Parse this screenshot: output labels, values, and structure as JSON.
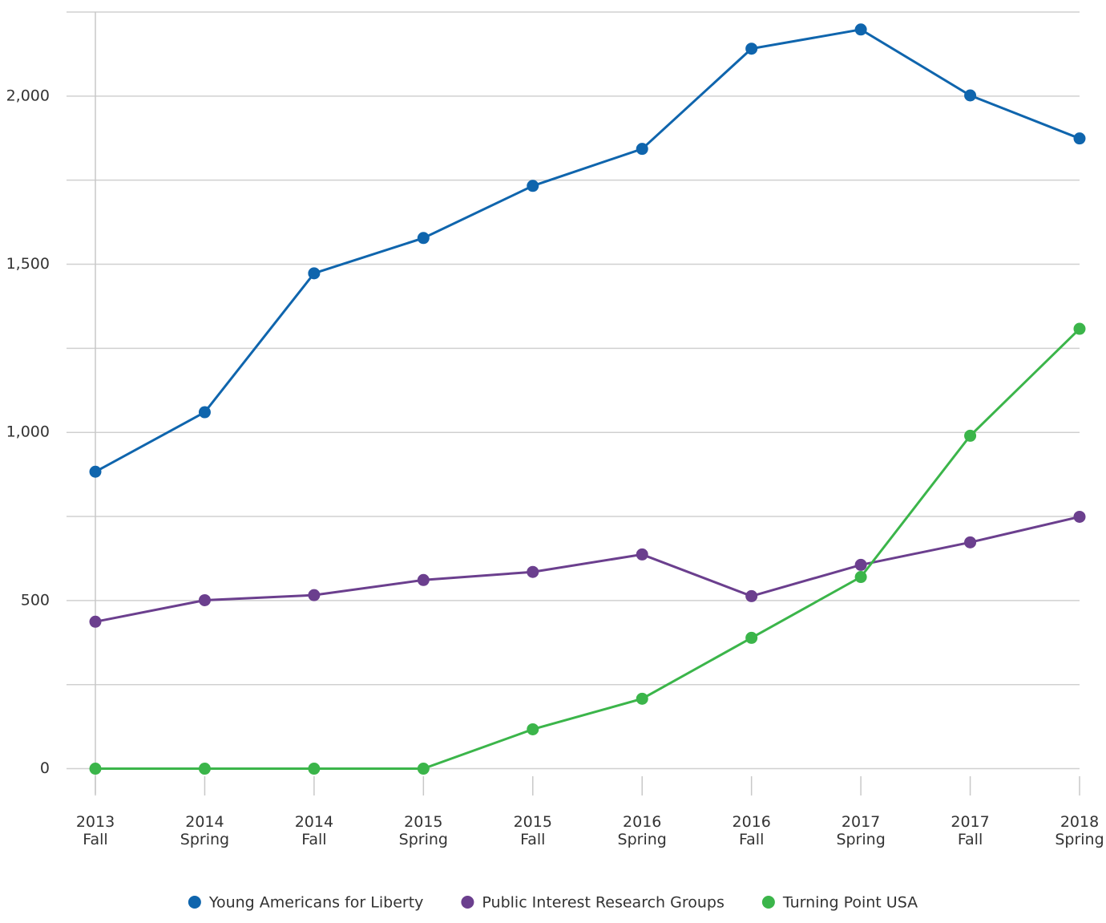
{
  "chart_data": {
    "type": "line",
    "categories": [
      [
        "2013",
        "Fall"
      ],
      [
        "2014",
        "Spring"
      ],
      [
        "2014",
        "Fall"
      ],
      [
        "2015",
        "Spring"
      ],
      [
        "2015",
        "Fall"
      ],
      [
        "2016",
        "Spring"
      ],
      [
        "2016",
        "Fall"
      ],
      [
        "2017",
        "Spring"
      ],
      [
        "2017",
        "Fall"
      ],
      [
        "2018",
        "Spring"
      ]
    ],
    "series": [
      {
        "name": "Young Americans for Liberty",
        "color": "#0f65ad",
        "values": [
          883,
          1060,
          1473,
          1578,
          1733,
          1843,
          2141,
          2198,
          2002,
          1874
        ]
      },
      {
        "name": "Public Interest Research Groups",
        "color": "#6b3f8e",
        "values": [
          437,
          501,
          516,
          561,
          585,
          637,
          513,
          606,
          673,
          749
        ]
      },
      {
        "name": "Turning Point USA",
        "color": "#3bb54a",
        "values": [
          0,
          0,
          0,
          0,
          117,
          208,
          389,
          570,
          990,
          1308
        ]
      }
    ],
    "ylim": [
      -75,
      2250
    ],
    "yticks": [
      0,
      500,
      {
        "value": 1000,
        "label": "1,000"
      },
      {
        "value": 1500,
        "label": "1,500"
      },
      {
        "value": 2000,
        "label": "2,000"
      }
    ],
    "minor_yticks": [
      250,
      750,
      1250,
      1750,
      2250
    ],
    "grid": true,
    "legend": "bottom"
  }
}
